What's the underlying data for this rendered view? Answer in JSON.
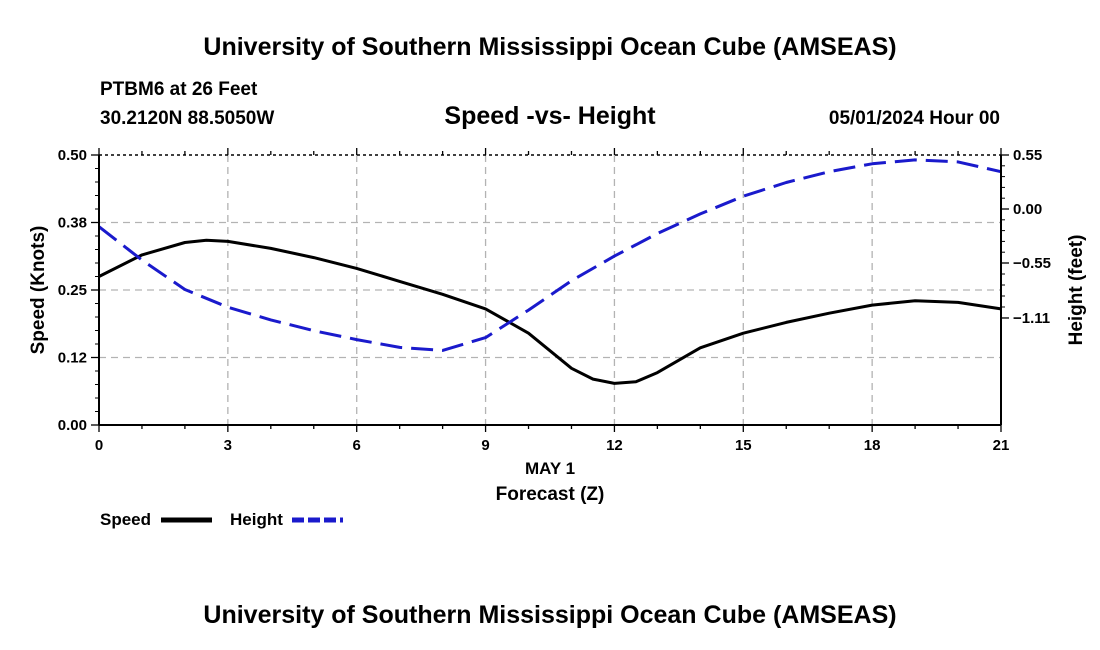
{
  "header": {
    "top_title": "University of Southern Mississippi Ocean Cube (AMSEAS)",
    "bottom_title": "University of Southern Mississippi Ocean Cube (AMSEAS)",
    "station": "PTBM6 at 26 Feet",
    "coords": "30.2120N  88.5050W",
    "datetime": "05/01/2024 Hour 00"
  },
  "legend": {
    "speed_label": "Speed",
    "height_label": "Height"
  },
  "colors": {
    "speed": "#000000",
    "height": "#1a1acc",
    "grid": "#b3b3b3"
  },
  "chart_data": {
    "type": "line",
    "title": "Speed -vs- Height",
    "xlabel": "Forecast (Z)",
    "xlabel_date": "MAY 1",
    "ylabel_left": "Speed (Knots)",
    "ylabel_right": "Height (feet)",
    "xlim": [
      0,
      21
    ],
    "ylim_left": [
      0,
      0.5
    ],
    "ylim_right": [
      -2.2,
      0.55
    ],
    "x_ticks": [
      0,
      3,
      6,
      9,
      12,
      15,
      18,
      21
    ],
    "x_tick_labels": [
      "0",
      "3",
      "6",
      "9",
      "12",
      "15",
      "18",
      "21"
    ],
    "y_left_ticks": [
      0.0,
      0.125,
      0.25,
      0.375,
      0.5
    ],
    "y_left_tick_labels": [
      "0.00",
      "0.12",
      "0.25",
      "0.38",
      "0.50"
    ],
    "y_right_ticks": [
      -1.11,
      -0.55,
      0.0,
      0.55
    ],
    "y_right_tick_labels": [
      "−1.11",
      "−0.55",
      "0.00",
      "0.55"
    ],
    "grid": true,
    "legend_position": "bottom-left",
    "series": [
      {
        "name": "Speed",
        "axis": "left",
        "style": "solid",
        "x": [
          0,
          1,
          2,
          2.5,
          3,
          4,
          5,
          6,
          7,
          8,
          9,
          10,
          11,
          11.5,
          12,
          12.5,
          13,
          14,
          15,
          16,
          17,
          18,
          19,
          20,
          21
        ],
        "y": [
          0.275,
          0.315,
          0.338,
          0.342,
          0.34,
          0.327,
          0.31,
          0.29,
          0.266,
          0.242,
          0.215,
          0.17,
          0.105,
          0.085,
          0.077,
          0.08,
          0.097,
          0.143,
          0.17,
          0.19,
          0.207,
          0.222,
          0.23,
          0.227,
          0.215
        ]
      },
      {
        "name": "Height",
        "axis": "right",
        "style": "dashed",
        "x": [
          0,
          1,
          2,
          3,
          4,
          5,
          6,
          7,
          8,
          9,
          10,
          11,
          12,
          13,
          14,
          15,
          16,
          17,
          18,
          19,
          20,
          21
        ],
        "y": [
          -0.18,
          -0.52,
          -0.82,
          -1.0,
          -1.13,
          -1.24,
          -1.33,
          -1.41,
          -1.44,
          -1.31,
          -1.03,
          -0.73,
          -0.48,
          -0.25,
          -0.05,
          0.13,
          0.27,
          0.38,
          0.46,
          0.5,
          0.48,
          0.38
        ]
      }
    ]
  }
}
